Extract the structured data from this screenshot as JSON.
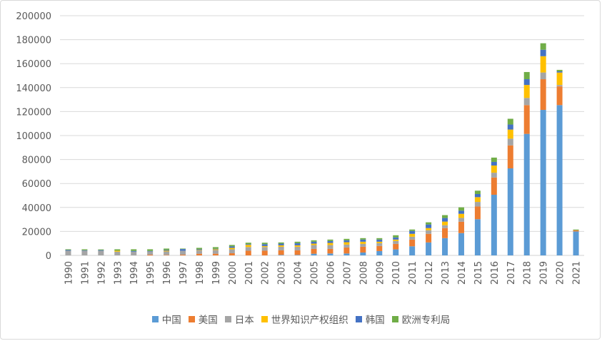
{
  "chart_data": {
    "type": "bar",
    "stacked": true,
    "title": "",
    "xlabel": "",
    "ylabel": "",
    "ylim": [
      0,
      200000
    ],
    "yticks": [
      0,
      20000,
      40000,
      60000,
      80000,
      100000,
      120000,
      140000,
      160000,
      180000,
      200000
    ],
    "grid": true,
    "legend_position": "bottom",
    "categories": [
      "1990",
      "1991",
      "1992",
      "1993",
      "1994",
      "1995",
      "1996",
      "1997",
      "1998",
      "1999",
      "2000",
      "2001",
      "2002",
      "2003",
      "2004",
      "2005",
      "2006",
      "2007",
      "2008",
      "2009",
      "2010",
      "2011",
      "2012",
      "2013",
      "2014",
      "2015",
      "2016",
      "2017",
      "2018",
      "2019",
      "2020",
      "2021"
    ],
    "series": [
      {
        "name": "中国",
        "color": "#5b9bd5",
        "values": [
          0,
          0,
          0,
          0,
          0,
          0,
          0,
          0,
          0,
          0,
          0,
          0,
          0,
          400,
          400,
          1400,
          1600,
          1600,
          2400,
          3600,
          5000,
          7600,
          10800,
          14400,
          18600,
          30200,
          50600,
          72600,
          101400,
          121400,
          125400,
          20000
        ]
      },
      {
        "name": "美国",
        "color": "#ed7d31",
        "values": [
          0,
          0,
          0,
          0,
          0,
          600,
          400,
          600,
          1400,
          1400,
          1800,
          3900,
          3900,
          3800,
          3800,
          4000,
          3800,
          5000,
          4800,
          4200,
          4600,
          5600,
          7200,
          8400,
          9500,
          10600,
          14400,
          19200,
          24000,
          25600,
          15600,
          1000
        ]
      },
      {
        "name": "日本",
        "color": "#a5a5a5",
        "values": [
          3900,
          3900,
          3900,
          3100,
          3100,
          2700,
          2900,
          3300,
          2700,
          3100,
          3300,
          3100,
          3100,
          3000,
          3000,
          3200,
          3200,
          2400,
          2400,
          2400,
          2400,
          2400,
          3000,
          2400,
          3200,
          3800,
          4000,
          5600,
          6000,
          5600,
          1200,
          0
        ]
      },
      {
        "name": "世界知识产权组织",
        "color": "#ffc000",
        "values": [
          0,
          0,
          0,
          800,
          0,
          0,
          600,
          0,
          400,
          600,
          1200,
          1800,
          800,
          1200,
          1200,
          1200,
          1800,
          2000,
          1800,
          1200,
          1200,
          2400,
          1800,
          3000,
          3400,
          4000,
          6000,
          7600,
          10800,
          13600,
          10400,
          0
        ]
      },
      {
        "name": "韩国",
        "color": "#4472c4",
        "values": [
          600,
          400,
          500,
          0,
          600,
          400,
          600,
          1400,
          600,
          400,
          1200,
          600,
          1600,
          1400,
          1800,
          1600,
          1600,
          1600,
          1800,
          1800,
          1800,
          2400,
          3000,
          3000,
          2600,
          2600,
          3000,
          4200,
          4800,
          5400,
          1000,
          0
        ]
      },
      {
        "name": "欧洲专利局",
        "color": "#70ad47",
        "values": [
          600,
          800,
          600,
          1200,
          1400,
          1400,
          1200,
          400,
          1200,
          1400,
          1200,
          1200,
          1200,
          1000,
          1200,
          1200,
          1200,
          1200,
          1200,
          1200,
          1800,
          1200,
          1800,
          2400,
          2800,
          2800,
          3600,
          4800,
          6000,
          5400,
          1200,
          600
        ]
      }
    ]
  }
}
